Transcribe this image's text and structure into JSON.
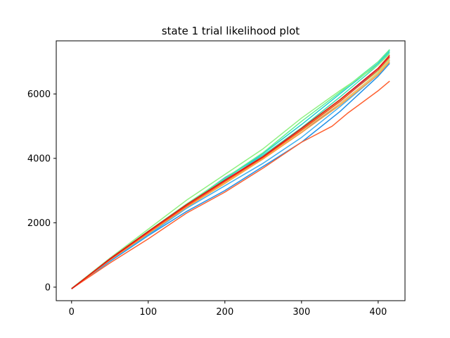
{
  "chart_data": {
    "type": "line",
    "title": "state 1 trial likelihood plot",
    "xlabel": "",
    "ylabel": "",
    "xlim": [
      -20,
      435
    ],
    "ylim": [
      -420,
      7650
    ],
    "xticks": [
      0,
      100,
      200,
      300,
      400
    ],
    "yticks": [
      0,
      2000,
      4000,
      6000
    ],
    "grid": false,
    "series": [
      {
        "color": "#1e90e8",
        "x": [
          0,
          50,
          100,
          150,
          200,
          250,
          300,
          350,
          400,
          415
        ],
        "y": [
          -50,
          800,
          1600,
          2350,
          3000,
          3750,
          4500,
          5450,
          6550,
          6950
        ]
      },
      {
        "color": "#2050e0",
        "x": [
          0,
          50,
          100,
          150,
          200,
          250,
          300,
          350,
          400,
          415
        ],
        "y": [
          -50,
          850,
          1650,
          2500,
          3300,
          4000,
          4800,
          5700,
          6650,
          7050
        ]
      },
      {
        "color": "#3080ff",
        "x": [
          0,
          50,
          100,
          150,
          200,
          250,
          300,
          350,
          400,
          415
        ],
        "y": [
          -40,
          870,
          1700,
          2550,
          3400,
          4100,
          4900,
          5800,
          6750,
          7150
        ]
      },
      {
        "color": "#40b0f0",
        "x": [
          0,
          50,
          100,
          150,
          200,
          250,
          300,
          350,
          400,
          415
        ],
        "y": [
          -50,
          830,
          1620,
          2450,
          3150,
          3850,
          4650,
          5600,
          6600,
          7000
        ]
      },
      {
        "color": "#20d0d0",
        "x": [
          0,
          50,
          100,
          150,
          200,
          250,
          300,
          350,
          400,
          415
        ],
        "y": [
          -50,
          870,
          1720,
          2550,
          3350,
          4150,
          5050,
          6000,
          6950,
          7350
        ]
      },
      {
        "color": "#40e0b0",
        "x": [
          0,
          50,
          100,
          150,
          200,
          250,
          300,
          350,
          400,
          415
        ],
        "y": [
          -50,
          860,
          1700,
          2530,
          3300,
          4100,
          4950,
          5900,
          6900,
          7300
        ]
      },
      {
        "color": "#60f090",
        "x": [
          0,
          50,
          100,
          150,
          200,
          250,
          300,
          350,
          400,
          415
        ],
        "y": [
          -40,
          880,
          1740,
          2580,
          3380,
          4180,
          5150,
          6050,
          7000,
          7380
        ]
      },
      {
        "color": "#90f080",
        "x": [
          0,
          50,
          100,
          150,
          200,
          250,
          300,
          350,
          400,
          415
        ],
        "y": [
          -40,
          900,
          1800,
          2700,
          3500,
          4300,
          5250,
          6100,
          6900,
          7250
        ]
      },
      {
        "color": "#c0e070",
        "x": [
          0,
          50,
          100,
          150,
          200,
          250,
          300,
          350,
          400,
          415
        ],
        "y": [
          -50,
          860,
          1700,
          2550,
          3300,
          4050,
          4900,
          5800,
          6700,
          7100
        ]
      },
      {
        "color": "#f0c860",
        "x": [
          0,
          50,
          100,
          150,
          200,
          250,
          300,
          350,
          400,
          415
        ],
        "y": [
          -50,
          850,
          1680,
          2500,
          3250,
          4000,
          4850,
          5700,
          6650,
          7050
        ]
      },
      {
        "color": "#ffa040",
        "x": [
          0,
          50,
          100,
          150,
          200,
          250,
          300,
          350,
          400,
          415
        ],
        "y": [
          -50,
          840,
          1660,
          2480,
          3220,
          3980,
          4800,
          5650,
          6600,
          7000
        ]
      },
      {
        "color": "#ff6030",
        "x": [
          0,
          50,
          100,
          150,
          200,
          250,
          300,
          340,
          360,
          400,
          415
        ],
        "y": [
          -50,
          750,
          1500,
          2300,
          2950,
          3700,
          4500,
          5000,
          5400,
          6100,
          6400
        ]
      },
      {
        "color": "#ff4020",
        "x": [
          0,
          50,
          100,
          150,
          200,
          250,
          300,
          350,
          400,
          415
        ],
        "y": [
          -50,
          860,
          1700,
          2520,
          3280,
          4030,
          4880,
          5760,
          6750,
          7150
        ]
      },
      {
        "color": "#e01010",
        "x": [
          0,
          50,
          100,
          150,
          200,
          250,
          300,
          350,
          400,
          415
        ],
        "y": [
          -50,
          880,
          1730,
          2560,
          3320,
          4060,
          4930,
          5820,
          6800,
          7200
        ]
      }
    ]
  }
}
